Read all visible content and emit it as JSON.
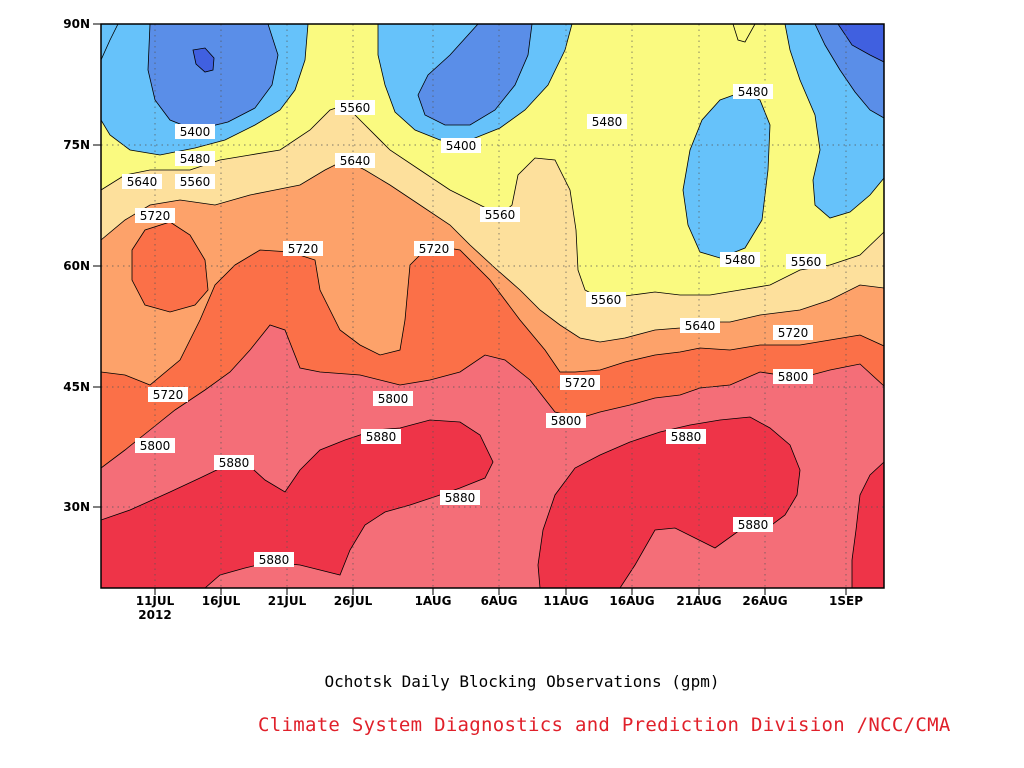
{
  "chart_data": {
    "type": "heatmap",
    "subtype": "filled-contour (time-latitude)",
    "title": "Ochotsk Daily Blocking Observations (gpm)",
    "xlabel": "",
    "ylabel": "",
    "x_ticks": [
      "11JUL",
      "16JUL",
      "21JUL",
      "26JUL",
      "1AUG",
      "6AUG",
      "11AUG",
      "16AUG",
      "21AUG",
      "26AUG",
      "1SEP"
    ],
    "x_year_label": "2012",
    "y_ticks": [
      "30N",
      "45N",
      "60N",
      "75N",
      "90N"
    ],
    "xlim": [
      "2012-07-07",
      "2012-09-04"
    ],
    "ylim": [
      20,
      90
    ],
    "contour_levels": [
      5400,
      5480,
      5560,
      5640,
      5720,
      5800,
      5880
    ],
    "colors": {
      "below_5400": "#4060e0",
      "5400_5480": "#5a8ee8",
      "5480_5560": "#66c2fa",
      "5560_5640": "#fafa80",
      "5640_5720": "#fde09c",
      "5720_5800": "#fda26a",
      "5800_5880": "#fb7048",
      "5880_5960": "#f46e78",
      "above_5960": "#ee3448"
    },
    "contour_labels": [
      "5400",
      "5480",
      "5560",
      "5640",
      "5720",
      "5800",
      "5880"
    ],
    "grid": true,
    "legend": "none"
  },
  "caption": "Ochotsk Daily Blocking Observations (gpm)",
  "credit": "Climate System Diagnostics and Prediction Division /NCC/CMA"
}
